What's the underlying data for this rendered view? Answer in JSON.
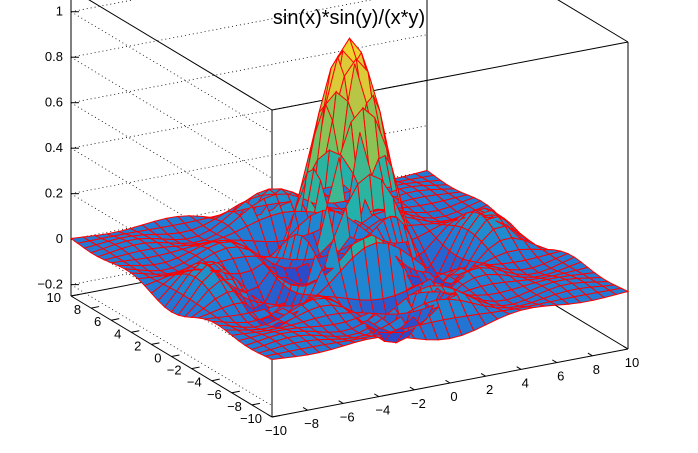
{
  "chart_data": {
    "type": "surface",
    "title": "sin(x)*sin(y)/(x*y)",
    "function": "sin(x)*sin(y)/(x*y)",
    "x_range": [
      -10,
      10
    ],
    "y_range": [
      -10,
      10
    ],
    "z_range": [
      -0.25,
      1.1
    ],
    "x_ticks": [
      -10,
      -8,
      -6,
      -4,
      -2,
      0,
      2,
      4,
      6,
      8,
      10
    ],
    "y_ticks": [
      -10,
      -8,
      -6,
      -4,
      -2,
      0,
      2,
      4,
      6,
      8,
      10
    ],
    "z_ticks": [
      -0.2,
      0,
      0.2,
      0.4,
      0.6,
      0.8,
      1
    ],
    "x_tick_labels": [
      "−10",
      "−8",
      "−6",
      "−4",
      "−2",
      "0",
      "2",
      "4",
      "6",
      "8",
      "10"
    ],
    "y_tick_labels": [
      "−10",
      "−8",
      "−6",
      "−4",
      "−2",
      "0",
      "2",
      "4",
      "6",
      "8",
      "10"
    ],
    "z_tick_labels": [
      "−0.2",
      "0",
      "0.2",
      "0.4",
      "0.6",
      "0.8",
      "1"
    ],
    "grid": true,
    "mesh_color": "#ff0000",
    "palette": [
      "#2f3fc8",
      "#1f82d6",
      "#22b4a8",
      "#7cc25a",
      "#d9c83a",
      "#f8d92a"
    ],
    "value_sampling": "sampled function surface"
  }
}
